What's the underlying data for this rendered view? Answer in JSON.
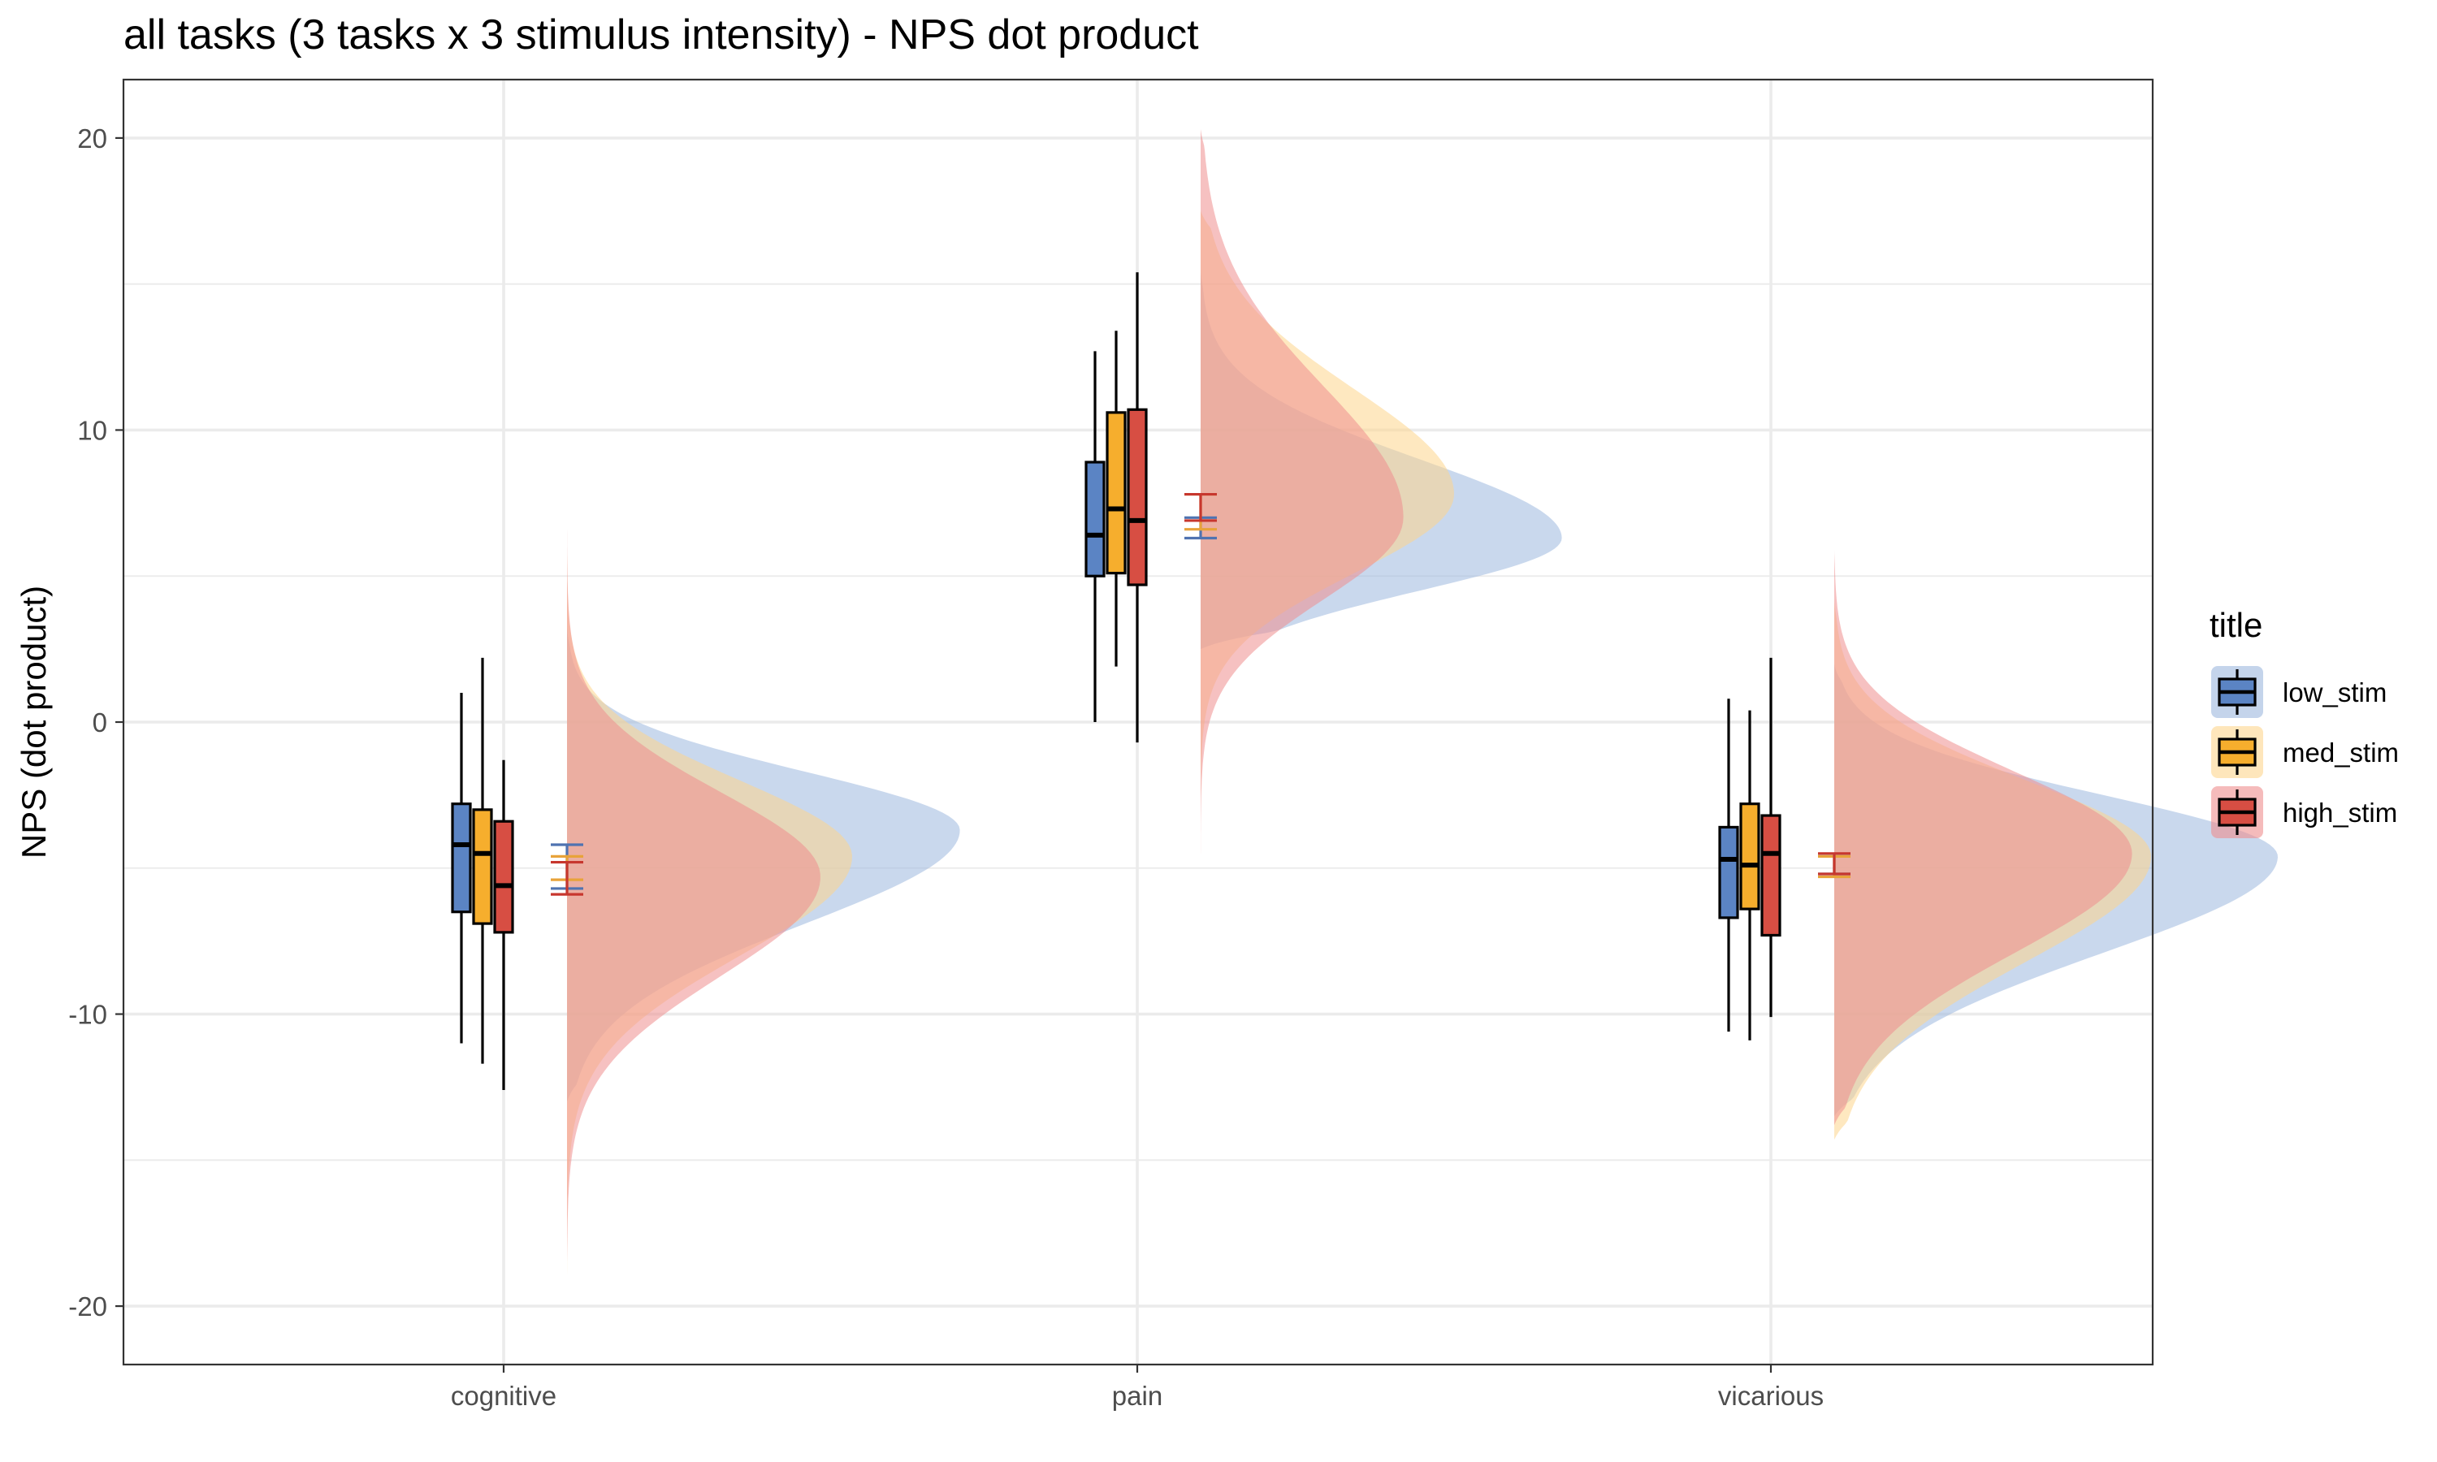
{
  "chart_data": {
    "type": "raincloud",
    "title": "all tasks  (3 tasks x 3 stimulus intensity) - NPS dot product",
    "xlabel": "",
    "ylabel": "NPS (dot product)",
    "ylim": [
      -22,
      22
    ],
    "y_ticks": [
      -20,
      -10,
      0,
      10,
      20
    ],
    "y_tick_labels": [
      "-20",
      "-10",
      "0",
      "10",
      "20"
    ],
    "grid": true,
    "categories": [
      "cognitive",
      "pain",
      "vicarious"
    ],
    "legend": {
      "title": "title",
      "position": "right"
    },
    "series": [
      {
        "name": "low_stim",
        "color": "#4F73B1",
        "fill": "#5B84C4",
        "cloud": "#9DB8DE",
        "boxes": [
          {
            "min": -11.0,
            "q1": -6.5,
            "median": -4.2,
            "q3": -2.8,
            "max": 1.0
          },
          {
            "min": 0.0,
            "q1": 5.0,
            "median": 6.4,
            "q3": 8.9,
            "max": 12.7
          },
          {
            "min": -10.6,
            "q1": -6.7,
            "median": -4.7,
            "q3": -3.6,
            "max": 0.8
          }
        ],
        "mean_ci": [
          {
            "mean": -4.9,
            "low": -5.7,
            "high": -4.2
          },
          {
            "mean": 6.7,
            "low": 6.3,
            "high": 7.0
          },
          {
            "mean": -4.9,
            "low": -5.2,
            "high": -4.6
          }
        ],
        "density": [
          {
            "ymin": -13.0,
            "ymax": 3.3,
            "mode": -3.7,
            "sigma_lo": 3.2,
            "sigma_hi": 2.0,
            "width": 0.62
          },
          {
            "ymin": 2.5,
            "ymax": 15.5,
            "mode": 6.3,
            "sigma_lo": 1.8,
            "sigma_hi": 2.7,
            "width": 0.57
          },
          {
            "ymin": -13.5,
            "ymax": 2.0,
            "mode": -4.6,
            "sigma_lo": 3.3,
            "sigma_hi": 2.1,
            "width": 0.7
          }
        ]
      },
      {
        "name": "med_stim",
        "color": "#E8A33A",
        "fill": "#F6AE2D",
        "cloud": "#FDD58D",
        "boxes": [
          {
            "min": -11.7,
            "q1": -6.9,
            "median": -4.5,
            "q3": -3.0,
            "max": 2.2
          },
          {
            "min": 1.9,
            "q1": 5.1,
            "median": 7.3,
            "q3": 10.6,
            "max": 13.4
          },
          {
            "min": -10.9,
            "q1": -6.4,
            "median": -4.9,
            "q3": -2.8,
            "max": 0.4
          }
        ],
        "mean_ci": [
          {
            "mean": -5.0,
            "low": -5.4,
            "high": -4.6
          },
          {
            "mean": 7.2,
            "low": 6.6,
            "high": 7.8
          },
          {
            "mean": -5.0,
            "low": -5.3,
            "high": -4.6
          }
        ],
        "density": [
          {
            "ymin": -19.5,
            "ymax": 6.0,
            "mode": -4.6,
            "sigma_lo": 3.4,
            "sigma_hi": 2.6,
            "width": 0.45
          },
          {
            "ymin": -3.0,
            "ymax": 17.5,
            "mode": 7.8,
            "sigma_lo": 2.7,
            "sigma_hi": 3.6,
            "width": 0.4
          },
          {
            "ymin": -14.3,
            "ymax": 4.2,
            "mode": -4.6,
            "sigma_lo": 3.6,
            "sigma_hi": 2.6,
            "width": 0.5
          }
        ]
      },
      {
        "name": "high_stim",
        "color": "#C7372E",
        "fill": "#D74E43",
        "cloud": "#EE8E8E",
        "boxes": [
          {
            "min": -12.6,
            "q1": -7.2,
            "median": -5.6,
            "q3": -3.4,
            "max": -1.3
          },
          {
            "min": -0.7,
            "q1": 4.7,
            "median": 6.9,
            "q3": 10.7,
            "max": 15.4
          },
          {
            "min": -10.1,
            "q1": -7.3,
            "median": -4.5,
            "q3": -3.2,
            "max": 2.2
          }
        ],
        "mean_ci": [
          {
            "mean": -5.3,
            "low": -5.9,
            "high": -4.8
          },
          {
            "mean": 7.4,
            "low": 6.9,
            "high": 7.8
          },
          {
            "mean": -4.9,
            "low": -5.2,
            "high": -4.5
          }
        ],
        "density": [
          {
            "ymin": -18.5,
            "ymax": 7.0,
            "mode": -5.3,
            "sigma_lo": 3.4,
            "sigma_hi": 2.9,
            "width": 0.4
          },
          {
            "ymin": -5.5,
            "ymax": 20.3,
            "mode": 7.0,
            "sigma_lo": 2.8,
            "sigma_hi": 4.5,
            "width": 0.32
          },
          {
            "ymin": -13.8,
            "ymax": 5.9,
            "mode": -4.5,
            "sigma_lo": 3.4,
            "sigma_hi": 2.8,
            "width": 0.47
          }
        ]
      }
    ]
  }
}
